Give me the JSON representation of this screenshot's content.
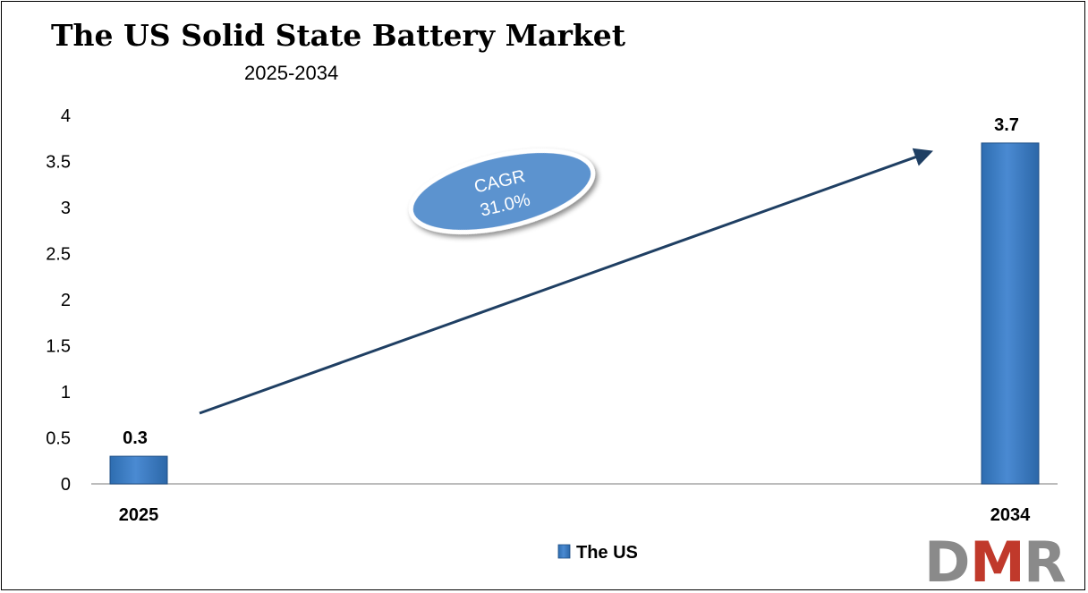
{
  "chart_data": {
    "type": "bar",
    "title": "The US Solid State Battery Market",
    "subtitle": "2025-2034",
    "categories": [
      "2025",
      "2034"
    ],
    "series": [
      {
        "name": "The US",
        "values": [
          0.3,
          3.7
        ],
        "labels": [
          "0.3",
          "3.7"
        ]
      }
    ],
    "ylim": [
      0,
      4
    ],
    "yticks": [
      {
        "value": 0,
        "label": "0"
      },
      {
        "value": 0.5,
        "label": "0.5"
      },
      {
        "value": 1,
        "label": "1"
      },
      {
        "value": 1.5,
        "label": "1.5"
      },
      {
        "value": 2,
        "label": "2"
      },
      {
        "value": 2.5,
        "label": "2.5"
      },
      {
        "value": 3,
        "label": "3"
      },
      {
        "value": 3.5,
        "label": "3.5"
      },
      {
        "value": 4,
        "label": "4"
      }
    ],
    "grid": false,
    "legend": "bottom-center",
    "bar_color": "#3b7cc4",
    "annotation": {
      "line1": "CAGR",
      "line2": "31.0%",
      "color": "#5b93cf"
    },
    "trend_arrow_color": "#1f3f63"
  },
  "logo": {
    "letters": [
      "D",
      "M",
      "R"
    ],
    "colors": [
      "#8a8a8a",
      "#c0392b",
      "#8a8a8a"
    ]
  }
}
